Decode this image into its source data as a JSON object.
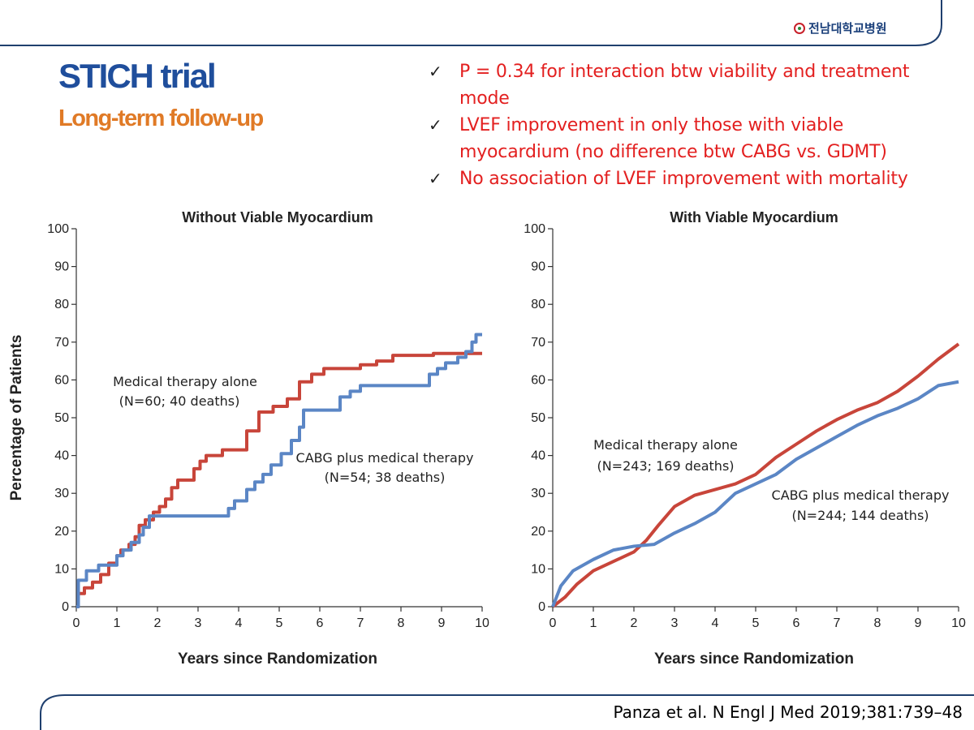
{
  "header": {
    "logo_text": "전남대학교병원",
    "title": "STICH trial",
    "subtitle": "Long-term follow-up"
  },
  "bullets": [
    {
      "icon": "check-icon",
      "text": "P = 0.34 for interaction btw viability and treatment mode"
    },
    {
      "icon": "check-icon",
      "text": "LVEF improvement in only those with viable myocardium (no difference btw CABG vs. GDMT)"
    },
    {
      "icon": "check-icon",
      "text": "No association of LVEF improvement with mortality"
    }
  ],
  "citation": "Panza et al. N Engl J Med 2019;381:739–48",
  "colors": {
    "title": "#1f4e9c",
    "subtitle": "#e07a26",
    "bullet_text": "#e32020",
    "medical_series": "#c8453a",
    "cabg_series": "#5b86c5",
    "frame_line": "#1f3f6e"
  },
  "chart_data": [
    {
      "type": "line",
      "step": true,
      "title": "Without Viable Myocardium",
      "xlabel": "Years since Randomization",
      "ylabel": "Percentage of Patients",
      "xlim": [
        0,
        10
      ],
      "ylim": [
        0,
        100
      ],
      "xticks": [
        0,
        1,
        2,
        3,
        4,
        5,
        6,
        7,
        8,
        9,
        10
      ],
      "yticks": [
        0,
        10,
        20,
        30,
        40,
        50,
        60,
        70,
        80,
        90,
        100
      ],
      "series": [
        {
          "name": "Medical therapy alone (N=60; 40 deaths)",
          "color": "#c8453a",
          "x": [
            0,
            0.05,
            0.2,
            0.4,
            0.6,
            0.8,
            1.0,
            1.1,
            1.3,
            1.45,
            1.55,
            1.7,
            1.9,
            2.05,
            2.2,
            2.35,
            2.5,
            2.9,
            3.05,
            3.2,
            3.6,
            4.2,
            4.5,
            4.85,
            5.2,
            5.5,
            5.8,
            6.1,
            7.0,
            7.4,
            7.8,
            8.8,
            10.0
          ],
          "y": [
            0,
            3.5,
            5.0,
            6.5,
            8.5,
            11.5,
            13.5,
            15.0,
            16.5,
            18.5,
            21.5,
            23.0,
            25.0,
            26.5,
            28.5,
            31.5,
            33.5,
            36.5,
            38.5,
            40.0,
            41.5,
            46.5,
            51.5,
            53.0,
            55.0,
            59.5,
            61.5,
            63.0,
            64.0,
            65.0,
            66.5,
            67.0,
            67.0
          ]
        },
        {
          "name": "CABG plus medical therapy (N=54; 38 deaths)",
          "color": "#5b86c5",
          "x": [
            0,
            0.05,
            0.25,
            0.55,
            0.75,
            1.0,
            1.15,
            1.35,
            1.55,
            1.65,
            1.8,
            3.6,
            3.75,
            3.9,
            4.2,
            4.4,
            4.6,
            4.8,
            5.05,
            5.3,
            5.5,
            5.6,
            6.5,
            6.75,
            7.0,
            8.7,
            8.9,
            9.1,
            9.4,
            9.6,
            9.75,
            9.85,
            10.0
          ],
          "y": [
            0,
            7.0,
            9.5,
            11.0,
            11.0,
            13.5,
            15.0,
            17.0,
            19.0,
            21.0,
            24.0,
            24.0,
            26.0,
            28.0,
            31.0,
            33.0,
            35.0,
            37.5,
            40.5,
            44.0,
            47.5,
            52.0,
            55.5,
            57.0,
            58.5,
            61.5,
            63.0,
            64.5,
            66.0,
            67.5,
            70.0,
            72.0,
            72.0
          ]
        }
      ],
      "annotations": [
        {
          "label": "Medical therapy alone",
          "sublabel": "(N=60; 40 deaths)"
        },
        {
          "label": "CABG plus medical therapy",
          "sublabel": "(N=54; 38 deaths)"
        }
      ]
    },
    {
      "type": "line",
      "step": false,
      "title": "With Viable Myocardium",
      "xlabel": "Years since Randomization",
      "ylabel": "",
      "xlim": [
        0,
        10
      ],
      "ylim": [
        0,
        100
      ],
      "xticks": [
        0,
        1,
        2,
        3,
        4,
        5,
        6,
        7,
        8,
        9,
        10
      ],
      "yticks": [
        0,
        10,
        20,
        30,
        40,
        50,
        60,
        70,
        80,
        90,
        100
      ],
      "series": [
        {
          "name": "Medical therapy alone (N=243; 169 deaths)",
          "color": "#c8453a",
          "x": [
            0,
            0.3,
            0.6,
            1.0,
            1.5,
            2.0,
            2.3,
            2.6,
            3.0,
            3.5,
            4.0,
            4.5,
            5.0,
            5.5,
            6.0,
            6.5,
            7.0,
            7.5,
            8.0,
            8.5,
            9.0,
            9.5,
            10.0
          ],
          "y": [
            0,
            2.5,
            6.0,
            9.5,
            12.0,
            14.5,
            17.5,
            21.5,
            26.5,
            29.5,
            31.0,
            32.5,
            35.0,
            39.5,
            43.0,
            46.5,
            49.5,
            52.0,
            54.0,
            57.0,
            61.0,
            65.5,
            69.5
          ]
        },
        {
          "name": "CABG plus medical therapy (N=244; 144 deaths)",
          "color": "#5b86c5",
          "x": [
            0,
            0.2,
            0.5,
            1.0,
            1.5,
            2.0,
            2.5,
            3.0,
            3.5,
            4.0,
            4.5,
            5.0,
            5.5,
            6.0,
            6.5,
            7.0,
            7.5,
            8.0,
            8.5,
            9.0,
            9.5,
            10.0
          ],
          "y": [
            0,
            5.5,
            9.5,
            12.5,
            15.0,
            16.0,
            16.5,
            19.5,
            22.0,
            25.0,
            30.0,
            32.5,
            35.0,
            39.0,
            42.0,
            45.0,
            48.0,
            50.5,
            52.5,
            55.0,
            58.5,
            59.5
          ]
        }
      ],
      "annotations": [
        {
          "label": "Medical therapy alone",
          "sublabel": "(N=243; 169 deaths)"
        },
        {
          "label": "CABG plus medical therapy",
          "sublabel": "(N=244; 144 deaths)"
        }
      ]
    }
  ]
}
